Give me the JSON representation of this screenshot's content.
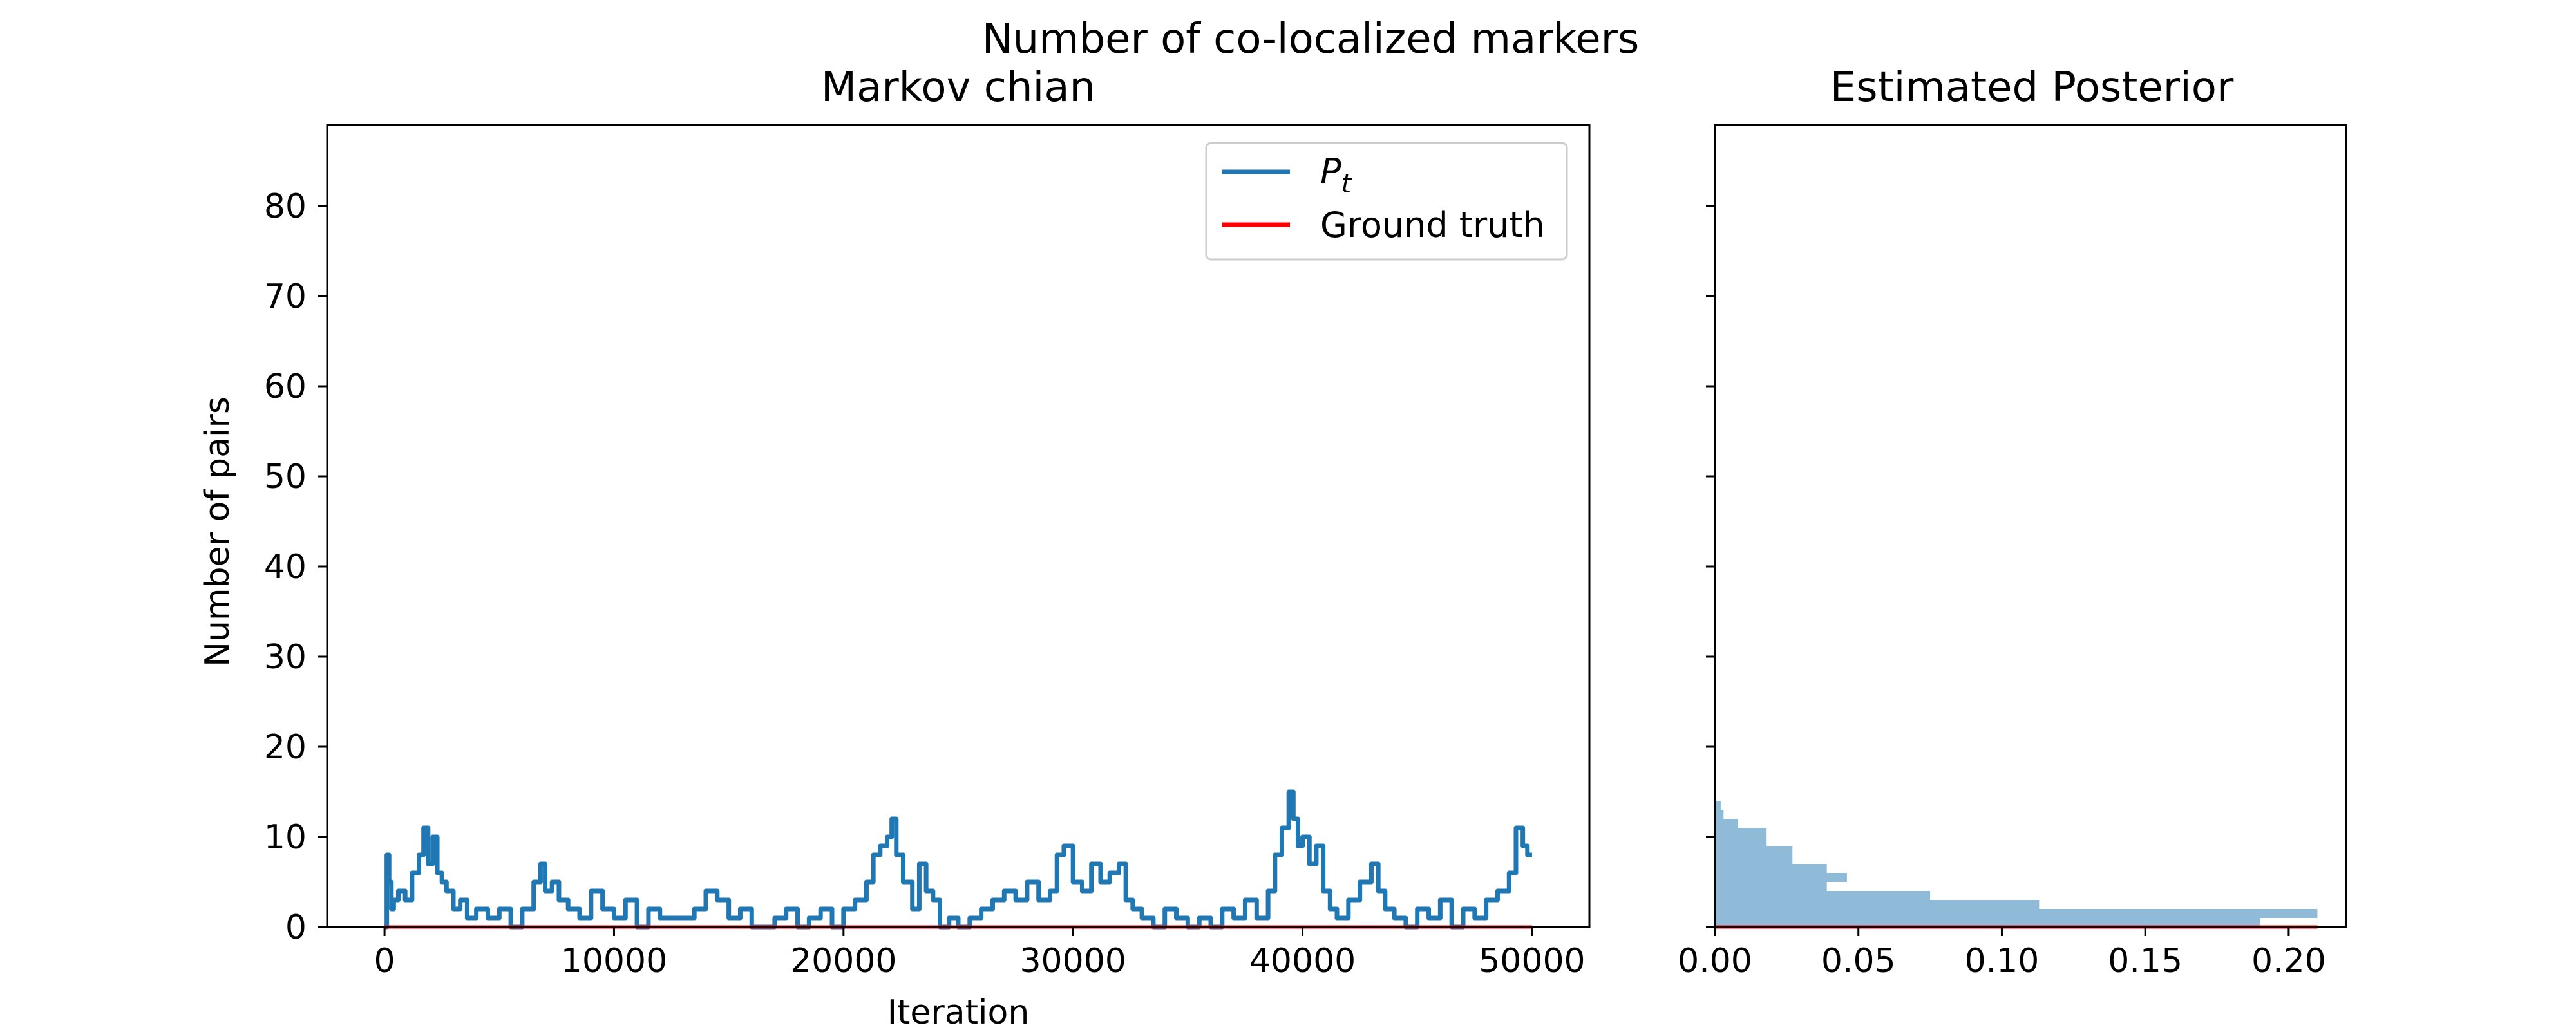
{
  "suptitle": "Number of co-localized markers",
  "chart_data": [
    {
      "type": "line",
      "title": "Markov chian",
      "xlabel": "Iteration",
      "ylabel": "Number of pairs",
      "xlim": [
        -2500,
        52500
      ],
      "ylim": [
        0,
        89
      ],
      "xticks": [
        0,
        10000,
        20000,
        30000,
        40000,
        50000
      ],
      "xtick_labels": [
        "0",
        "10000",
        "20000",
        "30000",
        "40000",
        "50000"
      ],
      "yticks": [
        0,
        10,
        20,
        30,
        40,
        50,
        60,
        70,
        80
      ],
      "ytick_labels": [
        "0",
        "10",
        "20",
        "30",
        "40",
        "50",
        "60",
        "70",
        "80"
      ],
      "grid": false,
      "legend": {
        "position": "upper right",
        "entries": [
          {
            "label": "P",
            "subscript": "t",
            "color": "#1f77b4"
          },
          {
            "label": "Ground truth",
            "color": "#ff0000"
          }
        ]
      },
      "series": [
        {
          "name": "P_t",
          "color": "#1f77b4",
          "x": [
            0,
            100,
            200,
            300,
            400,
            600,
            900,
            1200,
            1500,
            1700,
            1900,
            2100,
            2300,
            2500,
            2700,
            3000,
            3300,
            3600,
            4000,
            4500,
            5000,
            5500,
            6000,
            6500,
            6800,
            7000,
            7300,
            7600,
            8000,
            8500,
            9000,
            9500,
            10000,
            10500,
            11000,
            11500,
            12000,
            13000,
            13500,
            14000,
            14500,
            15000,
            15500,
            16000,
            17000,
            17500,
            18000,
            18500,
            19000,
            19500,
            20000,
            20500,
            21000,
            21300,
            21600,
            21900,
            22100,
            22300,
            22600,
            23000,
            23300,
            23600,
            23900,
            24200,
            24600,
            25000,
            25500,
            26000,
            26500,
            27000,
            27500,
            28000,
            28500,
            29000,
            29300,
            29600,
            30000,
            30400,
            30800,
            31200,
            31600,
            32000,
            32300,
            32600,
            33000,
            33500,
            34000,
            34500,
            35000,
            35500,
            36000,
            36500,
            37000,
            37500,
            38000,
            38500,
            38800,
            39100,
            39400,
            39600,
            39800,
            40000,
            40300,
            40600,
            40900,
            41200,
            41500,
            42000,
            42500,
            43000,
            43300,
            43600,
            44000,
            44500,
            45000,
            45500,
            46000,
            46500,
            47000,
            47500,
            48000,
            48500,
            49000,
            49300,
            49600,
            49800,
            50000
          ],
          "y": [
            0,
            8,
            5,
            2,
            3,
            4,
            3,
            6,
            8,
            11,
            7,
            10,
            6,
            5,
            4,
            2,
            3,
            1,
            2,
            1,
            2,
            0,
            2,
            5,
            7,
            4,
            5,
            3,
            2,
            1,
            4,
            2,
            1,
            3,
            0,
            2,
            1,
            1,
            2,
            4,
            3,
            1,
            2,
            0,
            1,
            2,
            0,
            1,
            2,
            0,
            2,
            3,
            5,
            8,
            9,
            10,
            12,
            8,
            5,
            2,
            7,
            4,
            3,
            0,
            1,
            0,
            1,
            2,
            3,
            4,
            3,
            5,
            3,
            4,
            8,
            9,
            5,
            4,
            7,
            5,
            6,
            7,
            3,
            2,
            1,
            0,
            2,
            1,
            0,
            1,
            0,
            2,
            1,
            3,
            1,
            4,
            8,
            11,
            15,
            12,
            9,
            10,
            7,
            9,
            4,
            2,
            1,
            3,
            5,
            7,
            4,
            2,
            1,
            0,
            2,
            1,
            3,
            0,
            2,
            1,
            3,
            4,
            6,
            11,
            9,
            8,
            8
          ]
        },
        {
          "name": "Ground truth",
          "color": "#ff0000",
          "x": [
            0,
            50000
          ],
          "y": [
            0,
            0
          ]
        }
      ]
    },
    {
      "type": "bar",
      "orientation": "horizontal",
      "title": "Estimated Posterior",
      "xlim": [
        0,
        0.22
      ],
      "ylim": [
        0,
        89
      ],
      "xticks": [
        0,
        0.05,
        0.1,
        0.15,
        0.2
      ],
      "xtick_labels": [
        "0.00",
        "0.05",
        "0.10",
        "0.15",
        "0.20"
      ],
      "shared_y": true,
      "grid": false,
      "bar_color": "#1f77b4",
      "bar_alpha": 0.5,
      "bins": [
        {
          "y0": 0,
          "y1": 1,
          "value": 0.19
        },
        {
          "y0": 1,
          "y1": 2,
          "value": 0.21
        },
        {
          "y0": 2,
          "y1": 3,
          "value": 0.113
        },
        {
          "y0": 3,
          "y1": 4,
          "value": 0.075
        },
        {
          "y0": 4,
          "y1": 5,
          "value": 0.039
        },
        {
          "y0": 5,
          "y1": 6,
          "value": 0.046
        },
        {
          "y0": 6,
          "y1": 7,
          "value": 0.039
        },
        {
          "y0": 7,
          "y1": 8,
          "value": 0.027
        },
        {
          "y0": 8,
          "y1": 9,
          "value": 0.027
        },
        {
          "y0": 9,
          "y1": 10,
          "value": 0.018
        },
        {
          "y0": 10,
          "y1": 11,
          "value": 0.018
        },
        {
          "y0": 11,
          "y1": 12,
          "value": 0.008
        },
        {
          "y0": 12,
          "y1": 13,
          "value": 0.003
        },
        {
          "y0": 13,
          "y1": 14,
          "value": 0.002
        }
      ],
      "ground_truth": {
        "y": 0,
        "color": "#ff0000"
      }
    }
  ]
}
